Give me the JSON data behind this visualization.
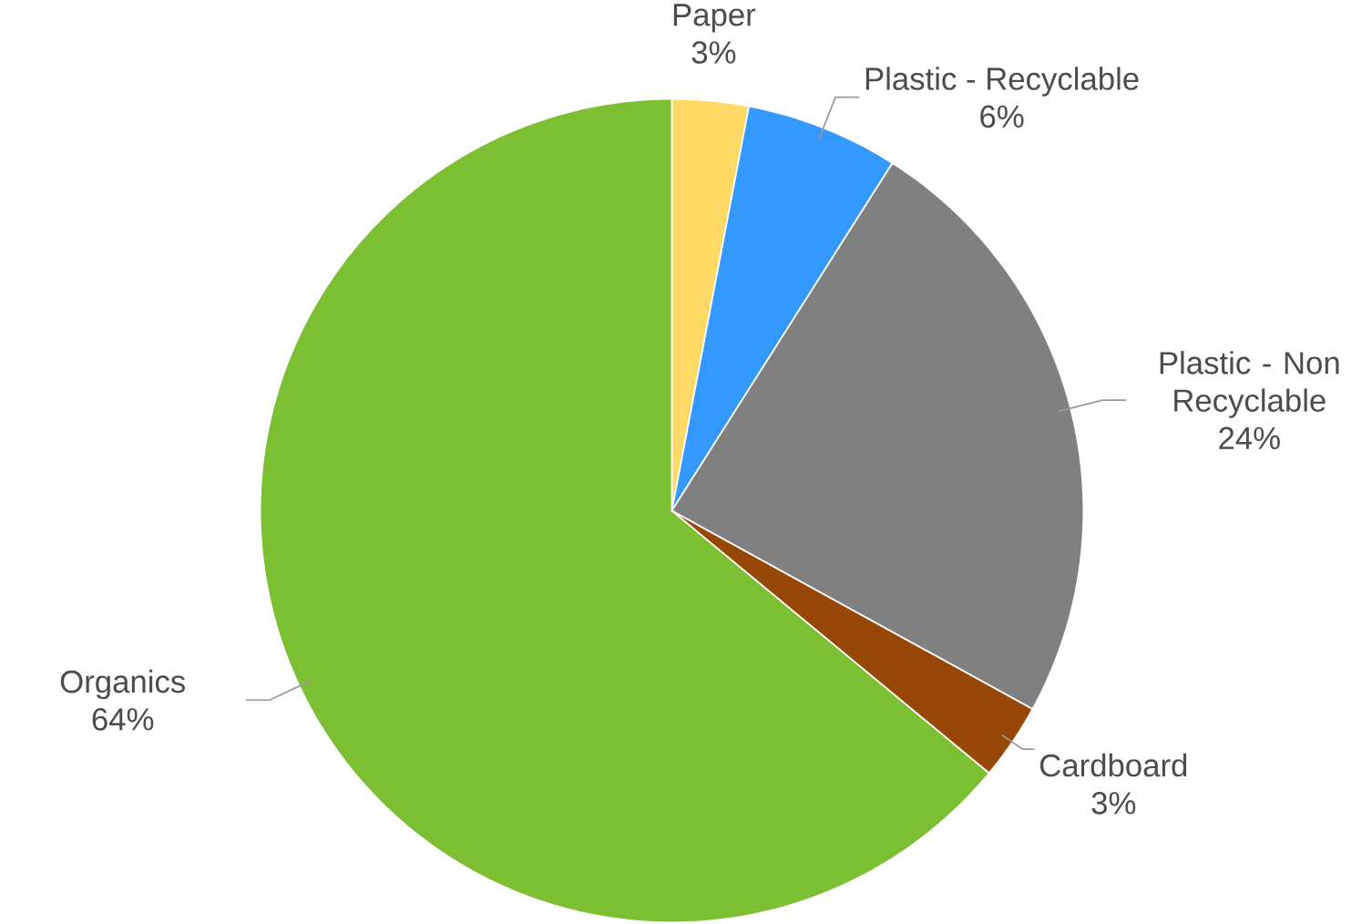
{
  "chart_data": {
    "type": "pie",
    "categories": [
      "Paper",
      "Plastic - Recyclable",
      "Plastic - Non Recyclable",
      "Cardboard",
      "Organics"
    ],
    "values": [
      3,
      6,
      24,
      3,
      64
    ],
    "value_labels": [
      "3%",
      "6%",
      "24%",
      "3%",
      "64%"
    ],
    "colors": [
      "#ffd966",
      "#3399ff",
      "#808080",
      "#974806",
      "#7dbf32"
    ]
  }
}
